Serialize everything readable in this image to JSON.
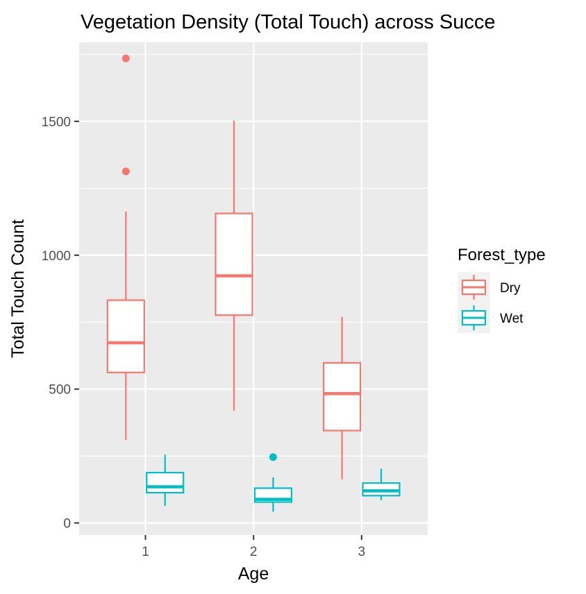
{
  "chart_data": {
    "type": "boxplot",
    "title": "Vegetation Density (Total Touch) across Succe",
    "xlabel": "Age",
    "ylabel": "Total Touch Count",
    "categories": [
      "1",
      "2",
      "3"
    ],
    "ylim": [
      -45,
      1795
    ],
    "yticks": [
      0,
      500,
      1000,
      1500
    ],
    "yticks_labels": [
      "0",
      "500",
      "1000",
      "1500"
    ],
    "grid": true,
    "legend": {
      "title": "Forest_type",
      "position": "right"
    },
    "series": [
      {
        "name": "Dry",
        "color": "#F8766D",
        "boxes": [
          {
            "category": "1",
            "whisker_low": 310,
            "q1": 562,
            "median": 673,
            "q3": 832,
            "whisker_high": 1163,
            "outliers": [
              1313,
              1735
            ]
          },
          {
            "category": "2",
            "whisker_low": 420,
            "q1": 776,
            "median": 923,
            "q3": 1156,
            "whisker_high": 1502,
            "outliers": []
          },
          {
            "category": "3",
            "whisker_low": 163,
            "q1": 345,
            "median": 483,
            "q3": 598,
            "whisker_high": 770,
            "outliers": []
          }
        ]
      },
      {
        "name": "Wet",
        "color": "#00BFC4",
        "boxes": [
          {
            "category": "1",
            "whisker_low": 64,
            "q1": 113,
            "median": 135,
            "q3": 188,
            "whisker_high": 255,
            "outliers": []
          },
          {
            "category": "2",
            "whisker_low": 42,
            "q1": 78,
            "median": 88,
            "q3": 130,
            "whisker_high": 170,
            "outliers": [
              246
            ]
          },
          {
            "category": "3",
            "whisker_low": 85,
            "q1": 102,
            "median": 120,
            "q3": 149,
            "whisker_high": 203,
            "outliers": []
          }
        ]
      }
    ]
  }
}
